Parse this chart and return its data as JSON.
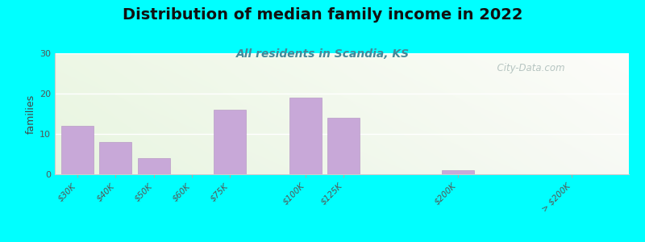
{
  "title": "Distribution of median family income in 2022",
  "subtitle": "All residents in Scandia, KS",
  "ylabel": "families",
  "background_color": "#00FFFF",
  "bar_color": "#c8a8d8",
  "bar_edge_color": "#b090c0",
  "categories": [
    "$30K",
    "$40K",
    "$50K",
    "$60K",
    "$75K",
    "$100K",
    "$125K",
    "$200K",
    "> $200K"
  ],
  "positions": [
    0,
    1,
    2,
    3,
    4,
    6,
    7,
    10,
    13
  ],
  "values": [
    12,
    8,
    4,
    0,
    16,
    19,
    14,
    1,
    0
  ],
  "bar_width": 0.85,
  "ylim": [
    0,
    30
  ],
  "yticks": [
    0,
    10,
    20,
    30
  ],
  "xlim_left": -0.6,
  "xlim_right": 14.5,
  "watermark": "  City-Data.com",
  "title_fontsize": 14,
  "subtitle_fontsize": 10,
  "ylabel_fontsize": 9,
  "title_color": "#111111",
  "subtitle_color": "#448899",
  "watermark_color": "#aabbb8",
  "tick_label_color": "#555555",
  "ytick_label_color": "#555555"
}
